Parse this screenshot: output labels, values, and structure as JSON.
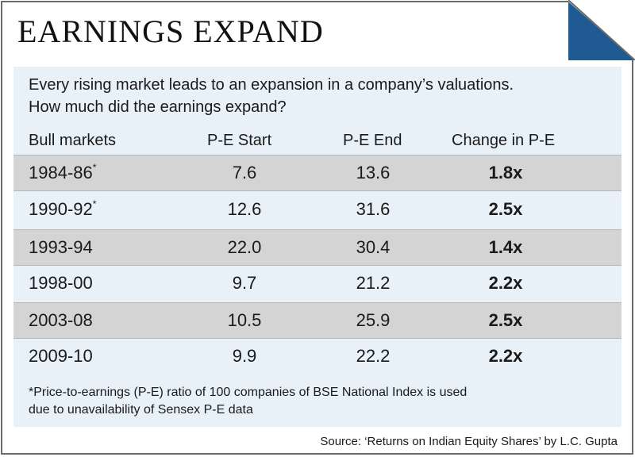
{
  "title": "EARNINGS EXPAND",
  "intro": {
    "line1": "Every rising market leads to an expansion in a company’s valuations.",
    "line2": "How much did the earnings expand?"
  },
  "headers": [
    "Bull markets",
    "P-E Start",
    "P-E End",
    "Change in P-E"
  ],
  "rows": [
    {
      "period": "1984-86",
      "mark": "*",
      "start": "7.6",
      "end": "13.6",
      "change": "1.8x"
    },
    {
      "period": "1990-92",
      "mark": "*",
      "start": "12.6",
      "end": "31.6",
      "change": "2.5x"
    },
    {
      "period": "1993-94",
      "mark": "",
      "start": "22.0",
      "end": "30.4",
      "change": "1.4x"
    },
    {
      "period": "1998-00",
      "mark": "",
      "start": "9.7",
      "end": "21.2",
      "change": "2.2x"
    },
    {
      "period": "2003-08",
      "mark": "",
      "start": "10.5",
      "end": "25.9",
      "change": "2.5x"
    },
    {
      "period": "2009-10",
      "mark": "",
      "start": "9.9",
      "end": "22.2",
      "change": "2.2x"
    }
  ],
  "footnote": {
    "line1": "*Price-to-earnings (P-E) ratio of 100 companies of BSE National Index is used",
    "line2": "due to unavailability of Sensex P-E data"
  },
  "source": "Source: ‘Returns on Indian Equity Shares’ by L.C. Gupta",
  "colors": {
    "panel": "#e8f1f8",
    "shaded_row": "#d4d4d4",
    "corner_accent": "#1f5a92",
    "border": "#6b6b6b"
  }
}
